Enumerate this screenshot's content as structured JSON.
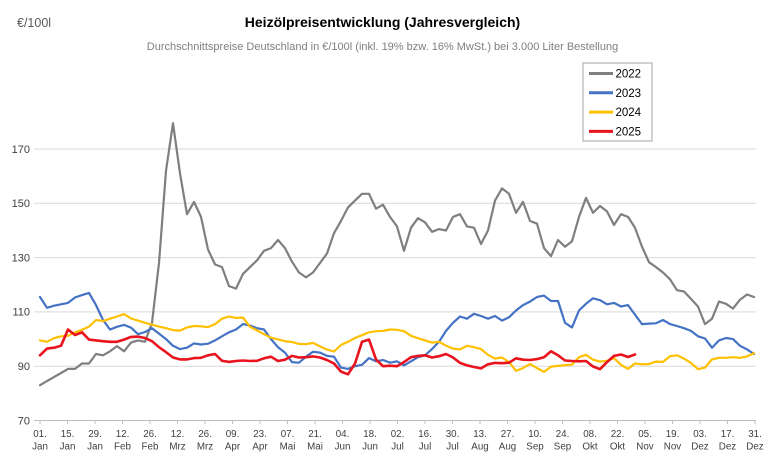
{
  "header": {
    "unit_label": "€/100l",
    "title": "Heizölpreisentwicklung (Jahresvergleich)",
    "subtitle": "Durchschnittspreise Deutschland in €/100l (inkl. 19% bzw. 16% MwSt.) bei 3.000 Liter Bestellung"
  },
  "chart_data": {
    "type": "line",
    "title": "Heizölpreisentwicklung (Jahresvergleich)",
    "subtitle": "Durchschnittspreise Deutschland in €/100l (inkl. 19% bzw. 16% MwSt.) bei 3.000 Liter Bestellung",
    "ylabel": "€/100l",
    "grid": true,
    "y_axis": {
      "min": 70,
      "max": 182,
      "ticks": [
        70,
        90,
        110,
        130,
        150,
        170
      ]
    },
    "x_axis": {
      "ticks": [
        {
          "day": "01.",
          "month": "Jan"
        },
        {
          "day": "15.",
          "month": "Jan"
        },
        {
          "day": "29.",
          "month": "Jan"
        },
        {
          "day": "12.",
          "month": "Feb"
        },
        {
          "day": "26.",
          "month": "Feb"
        },
        {
          "day": "12.",
          "month": "Mrz"
        },
        {
          "day": "26.",
          "month": "Mrz"
        },
        {
          "day": "09.",
          "month": "Apr"
        },
        {
          "day": "23.",
          "month": "Apr"
        },
        {
          "day": "07.",
          "month": "Mai"
        },
        {
          "day": "21.",
          "month": "Mai"
        },
        {
          "day": "04.",
          "month": "Jun"
        },
        {
          "day": "18.",
          "month": "Jun"
        },
        {
          "day": "02.",
          "month": "Jul"
        },
        {
          "day": "16.",
          "month": "Jul"
        },
        {
          "day": "30.",
          "month": "Jul"
        },
        {
          "day": "13.",
          "month": "Aug"
        },
        {
          "day": "27.",
          "month": "Aug"
        },
        {
          "day": "10.",
          "month": "Sep"
        },
        {
          "day": "24.",
          "month": "Sep"
        },
        {
          "day": "08.",
          "month": "Okt"
        },
        {
          "day": "22.",
          "month": "Okt"
        },
        {
          "day": "05.",
          "month": "Nov"
        },
        {
          "day": "19.",
          "month": "Nov"
        },
        {
          "day": "03.",
          "month": "Dez"
        },
        {
          "day": "17.",
          "month": "Dez"
        },
        {
          "day": "31.",
          "month": "Dez"
        }
      ]
    },
    "legend": {
      "position": "top-right",
      "entries": [
        "2022",
        "2023",
        "2024",
        "2025"
      ]
    },
    "series": [
      {
        "name": "2022",
        "color": "#7f7f7f",
        "stroke_width": 2.2,
        "values": [
          83,
          84.5,
          86,
          87.5,
          89,
          89,
          91,
          91,
          94.5,
          94,
          95.5,
          97.4,
          95.5,
          98.7,
          99.5,
          99,
          106,
          128,
          162,
          179.5,
          161,
          146,
          150.5,
          145,
          133,
          127.5,
          126.5,
          119.5,
          118.6,
          124,
          126.5,
          129,
          132.5,
          133.5,
          136.5,
          133.5,
          128.5,
          124.5,
          122.7,
          124.5,
          128,
          131.5,
          139,
          143.5,
          148.5,
          151,
          153.5,
          153.5,
          148,
          149.5,
          145,
          141.5,
          132.5,
          141,
          144.5,
          143,
          139.5,
          140.5,
          140,
          145,
          146,
          141.5,
          141,
          135,
          140,
          151,
          155.5,
          153.5,
          146.5,
          150.5,
          143.5,
          142.5,
          133.5,
          130.5,
          136.5,
          134,
          136,
          145,
          152,
          146.5,
          149,
          147,
          142,
          146,
          145,
          141,
          134,
          128.3,
          126.5,
          124.5,
          122,
          118,
          117.5,
          114.8,
          112,
          105.5,
          107.5,
          113.8,
          113,
          111.2,
          114.5,
          116.4,
          115.5
        ]
      },
      {
        "name": "2023",
        "color": "#4472c4",
        "stroke_width": 2.2,
        "values": [
          115.5,
          111.5,
          112.3,
          112.8,
          113.3,
          115.3,
          116.2,
          117,
          112.5,
          107,
          103.5,
          104.5,
          105.2,
          104.2,
          101.8,
          102.6,
          104,
          102,
          100,
          97.5,
          96.3,
          96.8,
          98.4,
          98,
          98.3,
          99.5,
          101,
          102.5,
          103.5,
          105.5,
          105,
          104,
          103.5,
          100,
          97,
          95,
          91.5,
          91.3,
          93.5,
          95.3,
          95,
          93.8,
          93.5,
          89.5,
          89,
          90,
          90.5,
          93,
          91.8,
          92.3,
          91.3,
          91.8,
          90.3,
          91.8,
          93.3,
          94,
          96.3,
          99,
          103,
          106,
          108.3,
          107.5,
          109.3,
          108.5,
          107.5,
          108.5,
          106.8,
          108,
          110.5,
          112.5,
          113.8,
          115.5,
          116,
          114,
          114,
          106,
          104.3,
          110.5,
          113,
          115,
          114.3,
          112.8,
          113.3,
          112,
          112.5,
          109,
          105.5,
          105.7,
          105.8,
          107,
          105.5,
          104.8,
          104,
          103,
          101,
          100.2,
          96.8,
          99.5,
          100.4,
          100,
          97.5,
          96.2,
          94.5
        ]
      },
      {
        "name": "2024",
        "color": "#ffc000",
        "stroke_width": 2.2,
        "values": [
          99.5,
          99,
          100.3,
          101,
          101.2,
          102.5,
          103.4,
          104.6,
          107,
          106.6,
          107.5,
          108.3,
          109.2,
          107.6,
          106.8,
          106,
          105.3,
          104.6,
          104,
          103.3,
          103.1,
          104.3,
          104.8,
          104.7,
          104.4,
          105.5,
          107.5,
          108.3,
          107.8,
          107.9,
          104.5,
          103.2,
          101.8,
          100.5,
          99.9,
          99.2,
          98.9,
          98.2,
          98.1,
          98.6,
          97.3,
          96.1,
          95.4,
          97.8,
          99,
          100.4,
          101.4,
          102.5,
          102.9,
          103,
          103.5,
          103.4,
          102.9,
          101.2,
          100.3,
          99.5,
          98.7,
          99,
          97.6,
          96.5,
          96.2,
          97.5,
          97,
          96.3,
          94.2,
          92.8,
          93.2,
          91.5,
          88.3,
          89.3,
          90.8,
          89.3,
          87.9,
          89.8,
          90.1,
          90.4,
          90.6,
          93.3,
          94.2,
          92.4,
          91.7,
          92,
          93,
          90.5,
          89,
          91,
          90.7,
          90.8,
          91.7,
          91.6,
          93.7,
          94,
          92.8,
          91.2,
          88.9,
          89.5,
          92.5,
          93.1,
          93.1,
          93.3,
          93.1,
          93.6,
          94.8
        ]
      },
      {
        "name": "2025",
        "color": "#e8131d",
        "stroke_width": 2.6,
        "values": [
          94,
          96.5,
          96.8,
          97.5,
          103.5,
          101.5,
          102.5,
          99.8,
          99.5,
          99.2,
          99,
          99,
          99.8,
          100.8,
          100.9,
          100.4,
          99.2,
          97,
          95.2,
          93.2,
          92.5,
          92.5,
          93,
          93.1,
          94,
          94.5,
          92,
          91.6,
          91.9,
          92.1,
          91.9,
          92,
          92.9,
          93.5,
          91.9,
          92.4,
          93.8,
          93.2,
          93.3,
          93.6,
          93.2,
          92.3,
          91,
          88,
          87,
          91,
          99,
          99.8,
          92.5,
          90,
          90.2,
          90,
          91.5,
          93.3,
          93.8,
          94,
          93.2,
          93.7,
          94.5,
          93.2,
          91.2,
          90.3,
          89.7,
          89.2,
          90.7,
          91.2,
          91.1,
          91.3,
          92.9,
          92.4,
          92.3,
          92.6,
          93.3,
          95.5,
          94,
          92.1,
          91.9,
          91.8,
          91.9,
          89.9,
          88.9,
          91.5,
          93.8,
          94.3,
          93.4,
          94.3,
          null,
          null,
          null,
          null,
          null,
          null,
          null,
          null,
          null,
          null,
          null,
          null,
          null,
          null,
          null,
          null,
          null
        ]
      }
    ]
  }
}
